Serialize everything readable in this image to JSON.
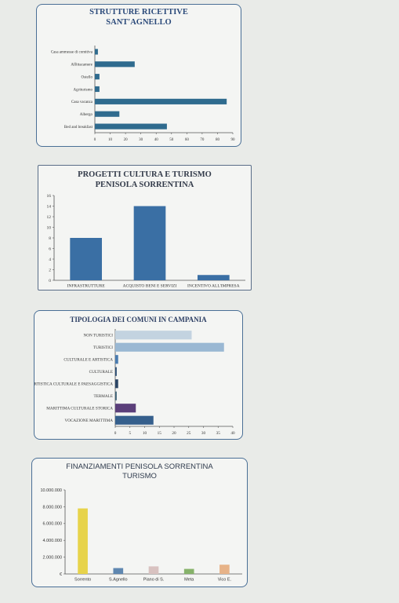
{
  "chart_data": [
    {
      "type": "bar",
      "orientation": "horizontal",
      "title": "STRUTTURE RICETTIVE\nSANT'AGNELLO",
      "categories": [
        "Casa ammesse di comitiva",
        "Affittacamere",
        "Ostello",
        "Agriturismo",
        "Casa vacanza",
        "Albergo",
        "Bed and breakfast"
      ],
      "values": [
        2,
        26,
        3,
        3,
        86,
        16,
        47
      ],
      "xlim": [
        0,
        90
      ],
      "xticks": [
        "0",
        "10",
        "20",
        "30",
        "40",
        "50",
        "60",
        "70",
        "80",
        "90"
      ],
      "color": "#2f6b8e",
      "grid": false
    },
    {
      "type": "bar",
      "title": "PROGETTI CULTURA E TURISMO\nPENISOLA SORRENTINA",
      "categories": [
        "INFRASTRUTTURE",
        "ACQUISTO BENI E SERVIZI",
        "INCENTIVO ALL'IMPRESA"
      ],
      "values": [
        8,
        14,
        1
      ],
      "ylim": [
        0,
        16
      ],
      "yticks": [
        "0",
        "2",
        "4",
        "6",
        "8",
        "10",
        "12",
        "14",
        "16"
      ],
      "color": "#3a6fa4",
      "grid": false
    },
    {
      "type": "bar",
      "orientation": "horizontal",
      "title": "TIPOLOGIA DEI COMUNI IN CAMPANIA",
      "categories": [
        "NON TURISTICI",
        "TURISTICI",
        "CULTURALE E ARTISTICA",
        "CULTURALE",
        "VOCAZIONE STORICA, ARTISTICA CULTURALE E PAESAGGISTICA",
        "TERMALE",
        "MARITTIMA CULTURALE STORICA",
        "VOCAZIONE MARITTIMA"
      ],
      "values": [
        26,
        37,
        1,
        0.5,
        1,
        0.5,
        7,
        13
      ],
      "colors": [
        "#c3d3e0",
        "#9ab8d3",
        "#4a7cb0",
        "#2b4d73",
        "#2c4666",
        "#3f6478",
        "#5b3f7a",
        "#355f8c"
      ],
      "xlim": [
        0,
        40
      ],
      "xticks": [
        "0",
        "5",
        "10",
        "15",
        "20",
        "25",
        "30",
        "35",
        "40"
      ],
      "grid": false
    },
    {
      "type": "bar",
      "title": "FINANZIAMENTI PENISOLA SORRENTINA\nTURISMO",
      "categories": [
        "Sorrento",
        "S.Agnello",
        "Piano di S.",
        "Meta",
        "Vico E."
      ],
      "values": [
        7800000,
        700000,
        900000,
        600000,
        1100000
      ],
      "colors": [
        "#e7d34a",
        "#5f87b0",
        "#d8c2c0",
        "#86b26a",
        "#e7b388"
      ],
      "ylim": [
        0,
        10000000
      ],
      "yticks": [
        "€",
        "2.000.000",
        "4.000.000",
        "6.000.000",
        "8.000.000",
        "10.000.000"
      ],
      "grid": false
    }
  ]
}
